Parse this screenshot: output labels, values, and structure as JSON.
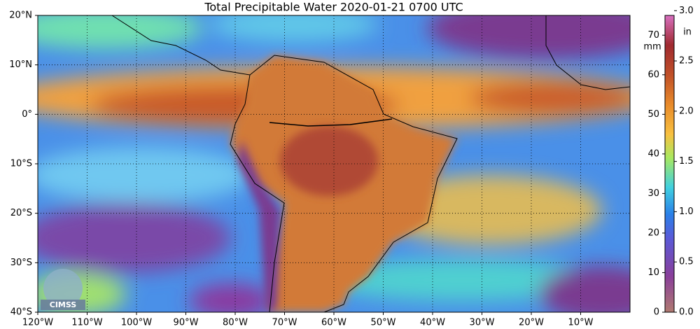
{
  "title": "Total Precipitable Water  2020-01-21 0700 UTC",
  "map": {
    "lon_labels": [
      "120°W",
      "110°W",
      "100°W",
      "90°W",
      "80°W",
      "70°W",
      "60°W",
      "50°W",
      "40°W",
      "30°W",
      "20°W",
      "10°W"
    ],
    "lat_labels": [
      "20°N",
      "10°N",
      "0°",
      "10°S",
      "20°S",
      "30°S",
      "40°S"
    ],
    "logo": "CIMSS"
  },
  "colorbar": {
    "mm_label": "mm",
    "in_label": "in",
    "mm_lim": [
      0,
      75
    ],
    "mm_ticks": [
      0,
      10,
      20,
      30,
      40,
      50,
      60,
      70
    ],
    "in_lim": [
      0,
      2.953
    ],
    "in_ticks": [
      {
        "value": 0,
        "label": "0.0"
      },
      {
        "value": 0.5,
        "label": "0.5"
      },
      {
        "value": 1,
        "label": "1.0"
      },
      {
        "value": 1.5,
        "label": "1.5"
      },
      {
        "value": 2,
        "label": "2.0"
      },
      {
        "value": 2.5,
        "label": "2.5"
      },
      {
        "value": 3,
        "label": "3.0"
      }
    ]
  }
}
